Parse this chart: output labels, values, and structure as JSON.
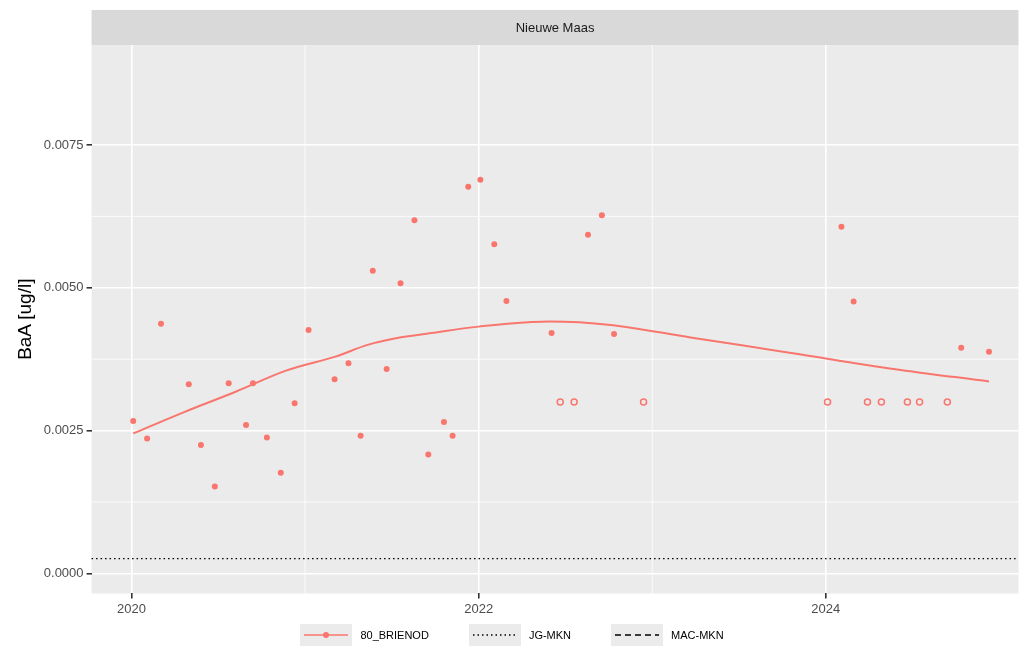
{
  "chart_data": {
    "type": "scatter",
    "title": "Nieuwe Maas",
    "ylabel": "BaA [ug/l]",
    "xlim": [
      2019.77,
      2025.11
    ],
    "xticks": [
      2020,
      2022,
      2024
    ],
    "ylim": [
      -0.00035,
      0.00925
    ],
    "yticks": [
      {
        "value": 0,
        "label": "0.0000"
      },
      {
        "value": 0.0025,
        "label": "0.0025"
      },
      {
        "value": 0.005,
        "label": "0.0050"
      },
      {
        "value": 0.0075,
        "label": "0.0075"
      }
    ],
    "grid": true,
    "legend": "bottom",
    "series": [
      {
        "name": "80_BRIENOD",
        "type": "line",
        "color": "#f8766d",
        "x": [
          2020.01,
          2020.3,
          2020.6,
          2020.89,
          2021.18,
          2021.36,
          2021.53,
          2021.71,
          2022.0,
          2022.41,
          2022.76,
          2023.22,
          2023.8,
          2024.39,
          2024.94
        ],
        "values": [
          0.00245,
          0.00282,
          0.00318,
          0.00355,
          0.0038,
          0.004,
          0.00412,
          0.0042,
          0.00432,
          0.00441,
          0.00435,
          0.00413,
          0.00386,
          0.00358,
          0.00336
        ]
      },
      {
        "marker": "circle",
        "color": "#f8766d",
        "x": [
          2020.01,
          2020.09,
          2020.17,
          2020.33,
          2020.4,
          2020.48,
          2020.56,
          2020.66,
          2020.7,
          2020.78,
          2020.86,
          2020.94,
          2021.02,
          2021.17,
          2021.25,
          2021.32,
          2021.39,
          2021.47,
          2021.55,
          2021.63,
          2021.71,
          2021.8,
          2021.85,
          2021.94,
          2022.01,
          2022.09,
          2022.16,
          2022.42,
          2022.63,
          2022.71,
          2022.78,
          2024.09,
          2024.16,
          2024.78,
          2024.94
        ],
        "values": [
          0.00267,
          0.00236,
          0.00437,
          0.00331,
          0.00225,
          0.00152,
          0.00333,
          0.0026,
          0.00333,
          0.00238,
          0.00176,
          0.00298,
          0.00426,
          0.0034,
          0.00368,
          0.00241,
          0.0053,
          0.00358,
          0.00508,
          0.00618,
          0.00208,
          0.00265,
          0.00241,
          0.00677,
          0.00689,
          0.00576,
          0.00477,
          0.00421,
          0.00593,
          0.00627,
          0.00419,
          0.00607,
          0.00476,
          0.00395,
          0.00388
        ]
      },
      {
        "marker": "circle",
        "color": "#f8766d",
        "x": [
          2022.47,
          2022.55,
          2022.95,
          2024.01,
          2024.24,
          2024.32,
          2024.47,
          2024.54,
          2024.7
        ],
        "values": [
          0.003,
          0.003,
          0.003,
          0.003,
          0.003,
          0.003,
          0.003,
          0.003,
          0.003
        ]
      },
      {
        "name": "MAC-MKN",
        "type": "line",
        "color": "#000000",
        "line_style": "dashed"
      }
    ],
    "ref_lines": [
      {
        "axis": "y",
        "value": 0.00026,
        "label": "JG-MKN",
        "color": "#000000",
        "line_style": "dotted"
      }
    ]
  }
}
